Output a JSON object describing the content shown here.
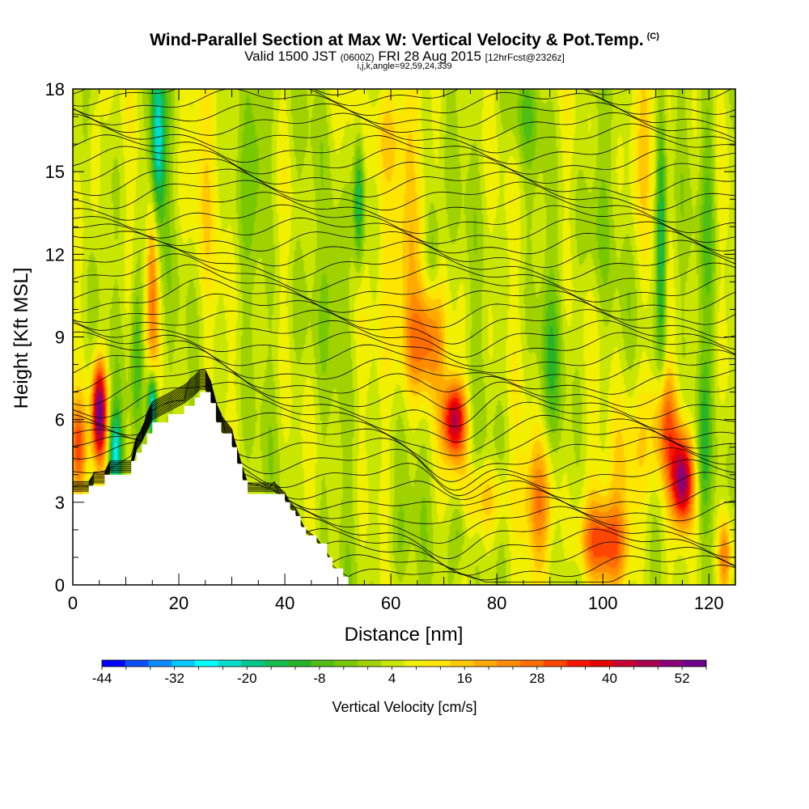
{
  "header": {
    "title": "Wind-Parallel Section at Max W: Vertical Velocity & Pot.Temp.",
    "title_mark": "(C)",
    "subtitle_pre": "Valid 1500 JST",
    "subtitle_utc": "(0600Z)",
    "subtitle_mid": "FRI 28 Aug 2015",
    "subtitle_fcst": "[12hrFcst@2326z]",
    "info": "i,j,k,angle=92,59,24,339"
  },
  "chart_data": {
    "type": "heatmap",
    "title": "Wind-Parallel Section at Max W: Vertical Velocity & Pot.Temp.",
    "xlabel": "Distance [nm]",
    "ylabel": "Height [Kft MSL]",
    "xlim": [
      0,
      125
    ],
    "ylim": [
      0,
      18
    ],
    "x_ticks": [
      0,
      20,
      40,
      60,
      80,
      100,
      120
    ],
    "x_tick_labels": [
      "0",
      "20",
      "40",
      "60",
      "80",
      "100",
      "120"
    ],
    "y_ticks": [
      0,
      3,
      6,
      9,
      12,
      15,
      18
    ],
    "y_tick_labels": [
      "0",
      "3",
      "6",
      "9",
      "12",
      "15",
      "18"
    ],
    "grid": false,
    "colorbar": {
      "title": "Vertical Velocity [cm/s]",
      "min": -44,
      "max": 56,
      "step": 4,
      "tick_values": [
        -44,
        -32,
        -20,
        -8,
        4,
        16,
        28,
        40,
        52
      ],
      "tick_labels": [
        "-44",
        "-32",
        "-20",
        "-8",
        "4",
        "16",
        "28",
        "40",
        "52"
      ],
      "colors": [
        "#0000ff",
        "#0a50ff",
        "#0a8cff",
        "#00c8ff",
        "#00ffff",
        "#00ddcc",
        "#00c88c",
        "#14be50",
        "#28b428",
        "#50be14",
        "#78c800",
        "#a0d200",
        "#c8e600",
        "#f0f000",
        "#ffe600",
        "#ffc800",
        "#ffaa00",
        "#ff8c00",
        "#ff6e00",
        "#ff4600",
        "#ff1400",
        "#e60000",
        "#c80032",
        "#aa0050",
        "#8c0078",
        "#6e008c"
      ]
    },
    "terrain": [
      [
        0,
        3.3
      ],
      [
        3,
        3.3
      ],
      [
        3,
        3.6
      ],
      [
        6,
        3.6
      ],
      [
        6,
        4.0
      ],
      [
        11,
        4.0
      ],
      [
        11,
        4.5
      ],
      [
        12,
        4.8
      ],
      [
        13,
        5.1
      ],
      [
        14,
        5.5
      ],
      [
        15,
        5.9
      ],
      [
        18,
        6.2
      ],
      [
        21,
        6.5
      ],
      [
        23,
        6.8
      ],
      [
        24,
        7.0
      ],
      [
        25,
        7.0
      ],
      [
        26,
        6.6
      ],
      [
        27,
        5.9
      ],
      [
        28,
        5.5
      ],
      [
        30,
        5.0
      ],
      [
        31,
        4.4
      ],
      [
        32,
        3.8
      ],
      [
        33,
        3.3
      ],
      [
        38,
        3.3
      ],
      [
        40,
        3.0
      ],
      [
        41,
        2.7
      ],
      [
        42,
        2.5
      ],
      [
        43,
        2.1
      ],
      [
        44,
        1.8
      ],
      [
        46,
        1.5
      ],
      [
        48,
        1.0
      ],
      [
        49,
        0.6
      ],
      [
        51,
        0.3
      ],
      [
        52,
        0.0
      ]
    ],
    "updrafts": [
      {
        "x": 5,
        "y": 6.3,
        "sx": 1.4,
        "sy": 1.8,
        "w": 54
      },
      {
        "x": 1,
        "y": 5.0,
        "sx": 1.5,
        "sy": 1.6,
        "w": 24
      },
      {
        "x": 15,
        "y": 11.0,
        "sx": 1.2,
        "sy": 3.5,
        "w": 20
      },
      {
        "x": 4,
        "y": 15.5,
        "sx": 1.2,
        "sy": 2.5,
        "w": 12
      },
      {
        "x": 66,
        "y": 8.8,
        "sx": 4.0,
        "sy": 2.0,
        "w": 26
      },
      {
        "x": 72,
        "y": 6.0,
        "sx": 2.2,
        "sy": 1.4,
        "w": 42
      },
      {
        "x": 62,
        "y": 12.0,
        "sx": 4.0,
        "sy": 3.0,
        "w": 14
      },
      {
        "x": 60,
        "y": 16.5,
        "sx": 4.5,
        "sy": 2.0,
        "w": 12
      },
      {
        "x": 78,
        "y": 3.2,
        "sx": 5.0,
        "sy": 1.3,
        "w": 12
      },
      {
        "x": 88,
        "y": 3.0,
        "sx": 3.0,
        "sy": 2.2,
        "w": 20
      },
      {
        "x": 100,
        "y": 1.5,
        "sx": 5.0,
        "sy": 1.5,
        "w": 26
      },
      {
        "x": 115,
        "y": 3.8,
        "sx": 2.0,
        "sy": 1.6,
        "w": 46
      },
      {
        "x": 112,
        "y": 5.8,
        "sx": 2.5,
        "sy": 2.0,
        "w": 22
      },
      {
        "x": 105,
        "y": 4.5,
        "sx": 4.0,
        "sy": 2.5,
        "w": 14
      },
      {
        "x": 123,
        "y": 1.0,
        "sx": 1.3,
        "sy": 1.5,
        "w": 22
      },
      {
        "x": 108,
        "y": 16.0,
        "sx": 4.0,
        "sy": 3.0,
        "w": 8
      },
      {
        "x": 25,
        "y": 15.0,
        "sx": 4.0,
        "sy": 4.0,
        "w": 6
      }
    ],
    "downdrafts": [
      {
        "x": 8,
        "y": 4.8,
        "sx": 1.2,
        "sy": 1.5,
        "w": -28
      },
      {
        "x": 15,
        "y": 6.5,
        "sx": 0.9,
        "sy": 1.2,
        "w": -38
      },
      {
        "x": 16,
        "y": 16.0,
        "sx": 1.4,
        "sy": 3.0,
        "w": -32
      },
      {
        "x": 12,
        "y": 8.5,
        "sx": 1.2,
        "sy": 3.0,
        "w": -16
      },
      {
        "x": 54,
        "y": 14.0,
        "sx": 1.0,
        "sy": 2.5,
        "w": -24
      },
      {
        "x": 50,
        "y": 11.5,
        "sx": 2.0,
        "sy": 2.5,
        "w": -8
      },
      {
        "x": 68,
        "y": 12.2,
        "sx": 1.5,
        "sy": 2.0,
        "w": -14
      },
      {
        "x": 73,
        "y": 2.2,
        "sx": 1.5,
        "sy": 1.5,
        "w": -12
      },
      {
        "x": 61,
        "y": 1.5,
        "sx": 3.0,
        "sy": 1.5,
        "w": -6
      },
      {
        "x": 90,
        "y": 8.0,
        "sx": 2.0,
        "sy": 3.0,
        "w": -10
      },
      {
        "x": 111,
        "y": 12.5,
        "sx": 1.0,
        "sy": 5.0,
        "w": -24
      },
      {
        "x": 120,
        "y": 14.0,
        "sx": 1.5,
        "sy": 5.0,
        "w": -10
      },
      {
        "x": 119,
        "y": 5.0,
        "sx": 1.2,
        "sy": 3.0,
        "w": -12
      },
      {
        "x": 35,
        "y": 16.0,
        "sx": 2.5,
        "sy": 3.0,
        "w": -10
      },
      {
        "x": 98,
        "y": 13.0,
        "sx": 3.0,
        "sy": 3.0,
        "w": -6
      },
      {
        "x": 43,
        "y": 9.5,
        "sx": 3.0,
        "sy": 3.0,
        "w": -4
      },
      {
        "x": 85,
        "y": 17.0,
        "sx": 4.0,
        "sy": 1.5,
        "w": -6
      }
    ],
    "contour_labels": [
      {
        "x": 5,
        "y": 3.9,
        "text": "?"
      }
    ]
  }
}
